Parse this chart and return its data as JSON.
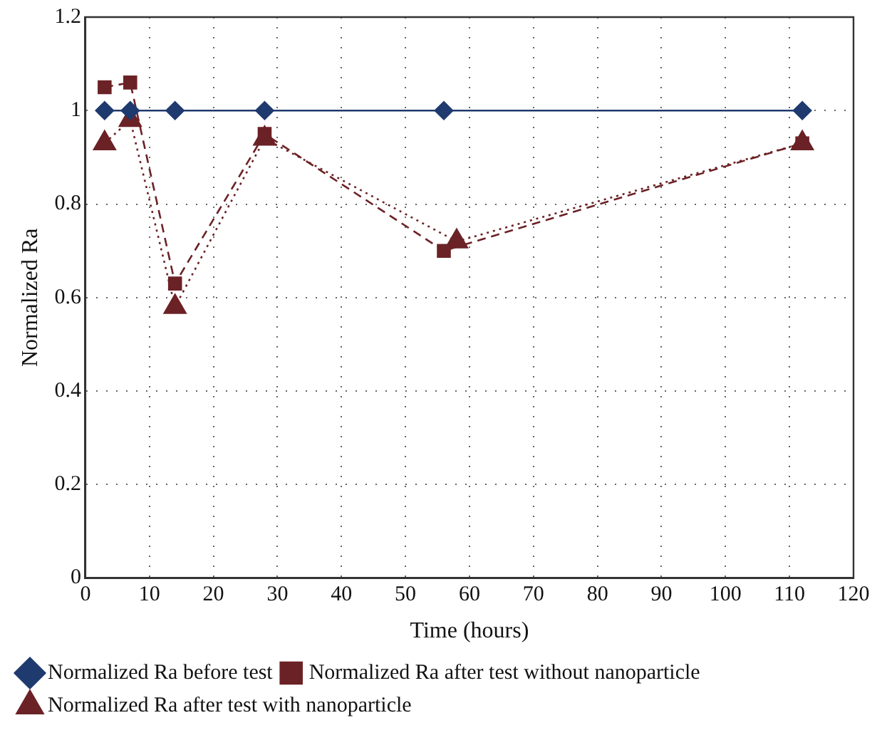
{
  "chart_data": {
    "type": "line",
    "xlabel": "Time (hours)",
    "ylabel": "Normalized Ra",
    "xlim": [
      0,
      120
    ],
    "xticks": [
      0,
      10,
      20,
      30,
      40,
      50,
      60,
      70,
      80,
      90,
      100,
      110,
      120
    ],
    "ylim": [
      0,
      1.2
    ],
    "yticks": [
      0,
      0.2,
      0.4,
      0.6,
      0.8,
      1,
      1.2
    ],
    "grid": true,
    "legend": "bottom",
    "series": [
      {
        "name": "Normalized Ra before test",
        "color": "#1f3a6e",
        "marker": "diamond",
        "line_style": "solid",
        "x": [
          3,
          7,
          14,
          28,
          56,
          112
        ],
        "values": [
          1,
          1,
          1,
          1,
          1,
          1
        ]
      },
      {
        "name": "Normalized Ra after test without nanoparticle",
        "color": "#6b2226",
        "marker": "square",
        "line_style": "dashed",
        "x": [
          3,
          7,
          14,
          28,
          56,
          112
        ],
        "values": [
          1.05,
          1.06,
          0.63,
          0.95,
          0.7,
          0.93
        ]
      },
      {
        "name": "Normalized Ra after test with nanoparticle",
        "color": "#6b2226",
        "marker": "triangle",
        "line_style": "dotted",
        "x": [
          3,
          7,
          14,
          28,
          58,
          112
        ],
        "values": [
          0.93,
          0.98,
          0.58,
          0.94,
          0.72,
          0.93
        ]
      }
    ]
  }
}
